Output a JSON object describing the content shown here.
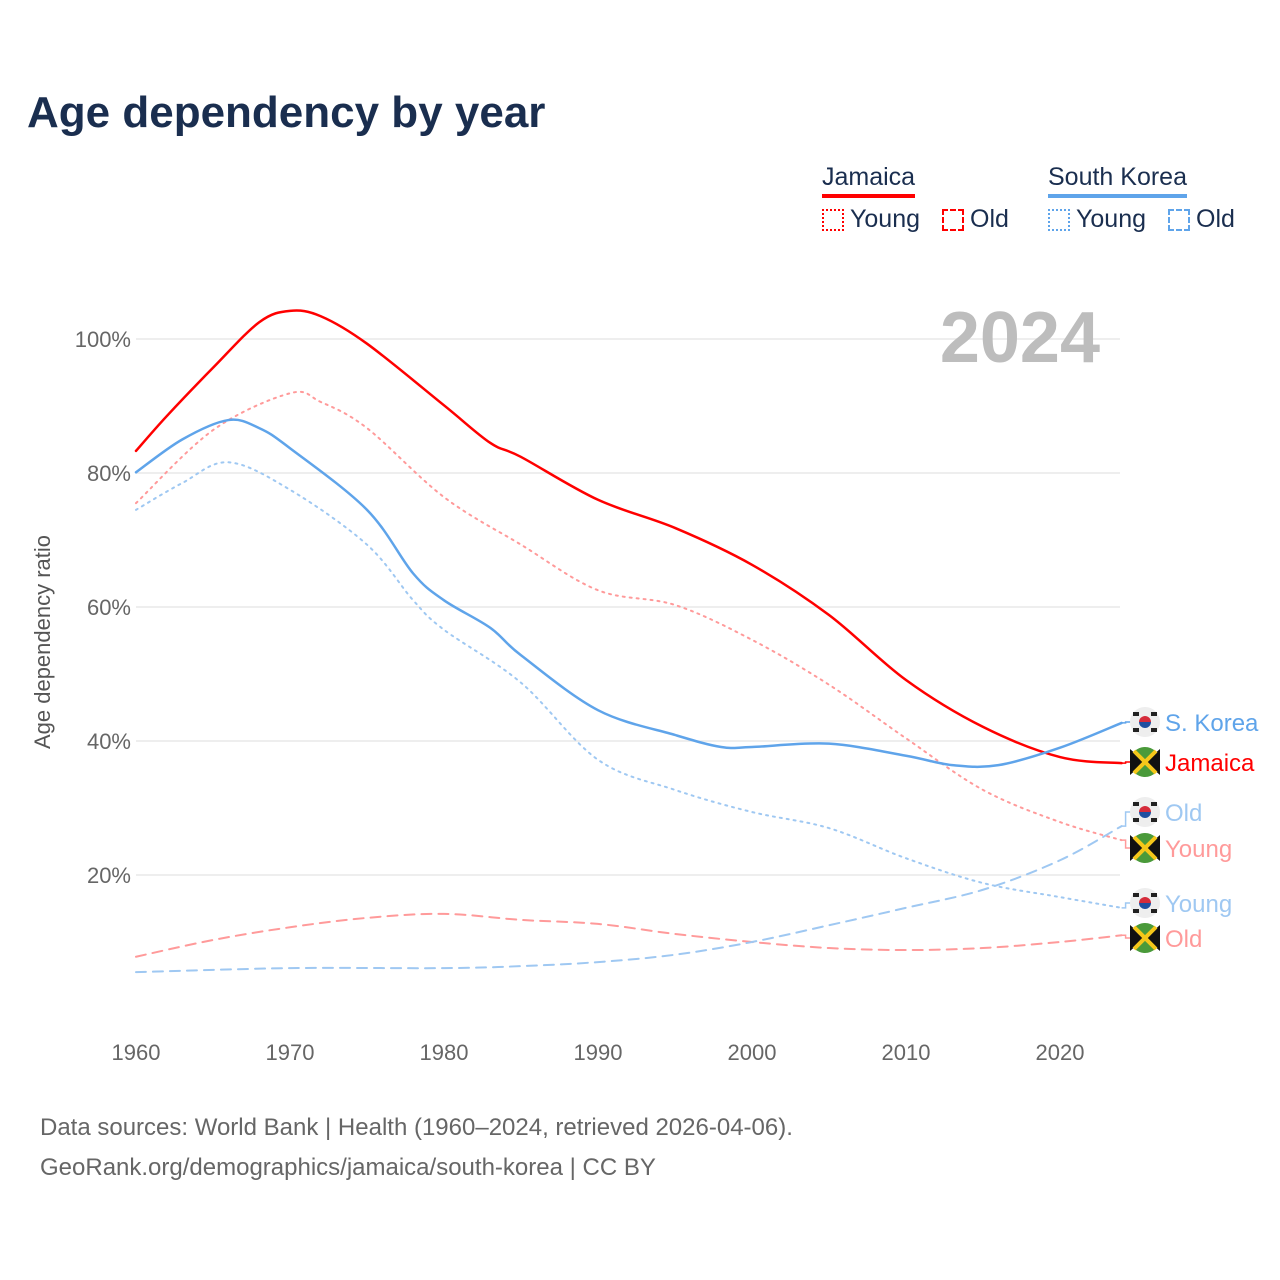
{
  "title": "Age dependency by year",
  "legend": {
    "groups": [
      {
        "name": "Jamaica",
        "color": "#ff0000",
        "items": [
          "Young",
          "Old"
        ]
      },
      {
        "name": "South Korea",
        "color": "#5fa4ea",
        "items": [
          "Young",
          "Old"
        ]
      }
    ]
  },
  "source": {
    "line1": "Data sources: World Bank | Health (1960–2024, retrieved 2026-04-06).",
    "line2": "GeoRank.org/demographics/jamaica/south-korea | CC BY"
  },
  "chart_data": {
    "type": "line",
    "title": "Age dependency by year",
    "year_label": "2024",
    "xlabel": "",
    "ylabel": "Age dependency ratio",
    "xlim": [
      1960,
      2024
    ],
    "ylim": [
      0,
      110
    ],
    "x_ticks": [
      "1960",
      "1970",
      "1980",
      "1990",
      "2000",
      "2010",
      "2020"
    ],
    "y_ticks": [
      "20%",
      "40%",
      "60%",
      "80%",
      "100%"
    ],
    "grid": true,
    "series": [
      {
        "name": "Jamaica",
        "label": "Jamaica",
        "country": "Jamaica",
        "style": "solid",
        "color": "#ff0000",
        "x": [
          1960,
          1962,
          1965,
          1968,
          1970,
          1972,
          1975,
          1980,
          1983,
          1985,
          1990,
          1995,
          2000,
          2005,
          2010,
          2015,
          2020,
          2024
        ],
        "y": [
          83.3,
          88.5,
          95.7,
          102.5,
          104.2,
          103.4,
          99.3,
          90.1,
          84.5,
          82.4,
          76,
          71.8,
          66.3,
          58.8,
          49.1,
          42.1,
          37.6,
          36.7
        ]
      },
      {
        "name": "Jamaica Young",
        "label": "Young",
        "country": "Jamaica",
        "style": "dotted",
        "color": "#ff9a9a",
        "x": [
          1960,
          1965,
          1970,
          1972,
          1975,
          1980,
          1985,
          1990,
          1995,
          2000,
          2005,
          2010,
          2015,
          2020,
          2024
        ],
        "y": [
          75.5,
          86.4,
          91.9,
          90.6,
          86.7,
          76.4,
          69.3,
          62.5,
          60.3,
          55.1,
          48.4,
          40.4,
          32.7,
          27.9,
          25.2
        ]
      },
      {
        "name": "Jamaica Old",
        "label": "Old",
        "country": "Jamaica",
        "style": "dashed",
        "color": "#ff9a9a",
        "x": [
          1960,
          1965,
          1970,
          1975,
          1980,
          1985,
          1990,
          1995,
          2000,
          2005,
          2010,
          2015,
          2020,
          2024
        ],
        "y": [
          7.8,
          10.3,
          12.2,
          13.6,
          14.2,
          13.3,
          12.7,
          11.2,
          10,
          9.1,
          8.8,
          9.1,
          10,
          11
        ]
      },
      {
        "name": "South Korea",
        "label": "S. Korea",
        "country": "South Korea",
        "style": "solid",
        "color": "#5fa4ea",
        "x": [
          1960,
          1963,
          1966,
          1968,
          1970,
          1975,
          1978,
          1980,
          1983,
          1985,
          1990,
          1995,
          1998,
          2000,
          2005,
          2010,
          2013,
          2016,
          2020,
          2024
        ],
        "y": [
          80.1,
          85,
          87.9,
          86.7,
          83.7,
          74.5,
          65,
          61,
          56.9,
          52.8,
          44.6,
          40.9,
          39.1,
          39.1,
          39.6,
          37.8,
          36.4,
          36.4,
          39,
          42.7
        ]
      },
      {
        "name": "South Korea Young",
        "label": "Young",
        "country": "South Korea",
        "style": "dotted",
        "color": "#9fc8f2",
        "x": [
          1960,
          1963,
          1966,
          1970,
          1975,
          1978,
          1980,
          1985,
          1990,
          1995,
          2000,
          2005,
          2010,
          2015,
          2020,
          2024
        ],
        "y": [
          74.5,
          78.5,
          81.6,
          77.5,
          69.3,
          61,
          56.6,
          48.7,
          37.2,
          32.7,
          29.4,
          27,
          22.5,
          18.8,
          16.7,
          15.1
        ]
      },
      {
        "name": "South Korea Old",
        "label": "Old",
        "country": "South Korea",
        "style": "dashed",
        "color": "#9fc8f2",
        "x": [
          1960,
          1970,
          1980,
          1985,
          1990,
          1995,
          2000,
          2005,
          2010,
          2015,
          2020,
          2024
        ],
        "y": [
          5.5,
          6.1,
          6.1,
          6.4,
          7,
          8.1,
          10,
          12.5,
          15.1,
          17.8,
          22.2,
          27.3
        ]
      }
    ]
  }
}
